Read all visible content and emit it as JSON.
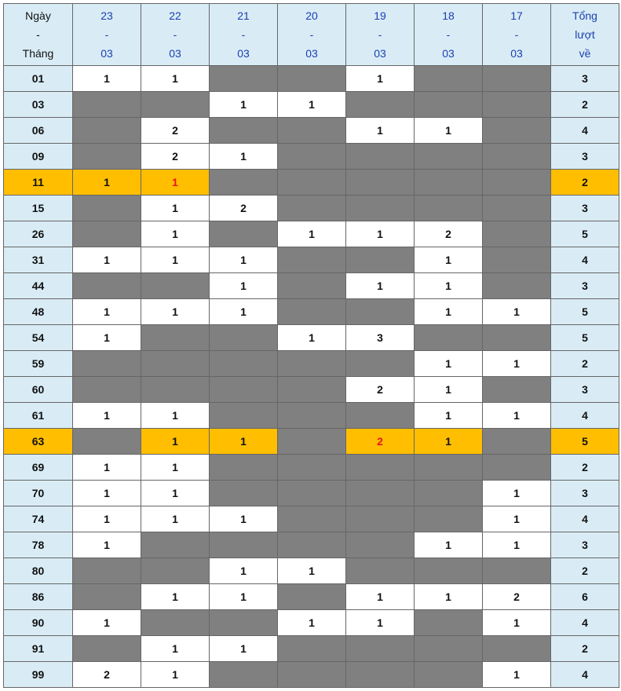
{
  "header": {
    "first": [
      "Ngày",
      "-",
      "Tháng"
    ],
    "dates": [
      [
        "23",
        "-",
        "03"
      ],
      [
        "22",
        "-",
        "03"
      ],
      [
        "21",
        "-",
        "03"
      ],
      [
        "20",
        "-",
        "03"
      ],
      [
        "19",
        "-",
        "03"
      ],
      [
        "18",
        "-",
        "03"
      ],
      [
        "17",
        "-",
        "03"
      ]
    ],
    "total": [
      "Tổng",
      "lượt",
      "về"
    ]
  },
  "colors": {
    "header_bg": "#d9ecf6",
    "empty": "#808080",
    "highlight": "#ffbe00",
    "red": "#e8141c",
    "date_text": "#1a3fb0"
  },
  "rows": [
    {
      "num": "01",
      "cells": [
        "1",
        "1",
        "",
        "",
        "1",
        "",
        ""
      ],
      "total": "3"
    },
    {
      "num": "03",
      "cells": [
        "",
        "",
        "1",
        "1",
        "",
        "",
        ""
      ],
      "total": "2"
    },
    {
      "num": "06",
      "cells": [
        "",
        "2",
        "",
        "",
        "1",
        "1",
        ""
      ],
      "total": "4"
    },
    {
      "num": "09",
      "cells": [
        "",
        "2",
        "1",
        "",
        "",
        "",
        ""
      ],
      "total": "3"
    },
    {
      "num": "11",
      "cells": [
        "1",
        "1",
        "",
        "",
        "",
        "",
        ""
      ],
      "total": "2",
      "highlight": true,
      "red": [
        1
      ]
    },
    {
      "num": "15",
      "cells": [
        "",
        "1",
        "2",
        "",
        "",
        "",
        ""
      ],
      "total": "3"
    },
    {
      "num": "26",
      "cells": [
        "",
        "1",
        "",
        "1",
        "1",
        "2",
        ""
      ],
      "total": "5"
    },
    {
      "num": "31",
      "cells": [
        "1",
        "1",
        "1",
        "",
        "",
        "1",
        ""
      ],
      "total": "4"
    },
    {
      "num": "44",
      "cells": [
        "",
        "",
        "1",
        "",
        "1",
        "1",
        ""
      ],
      "total": "3"
    },
    {
      "num": "48",
      "cells": [
        "1",
        "1",
        "1",
        "",
        "",
        "1",
        "1"
      ],
      "total": "5"
    },
    {
      "num": "54",
      "cells": [
        "1",
        "",
        "",
        "1",
        "3",
        "",
        ""
      ],
      "total": "5"
    },
    {
      "num": "59",
      "cells": [
        "",
        "",
        "",
        "",
        "",
        "1",
        "1"
      ],
      "total": "2"
    },
    {
      "num": "60",
      "cells": [
        "",
        "",
        "",
        "",
        "2",
        "1",
        ""
      ],
      "total": "3"
    },
    {
      "num": "61",
      "cells": [
        "1",
        "1",
        "",
        "",
        "",
        "1",
        "1"
      ],
      "total": "4"
    },
    {
      "num": "63",
      "cells": [
        "",
        "1",
        "1",
        "",
        "2",
        "1",
        ""
      ],
      "total": "5",
      "highlight": true,
      "red": [
        4
      ]
    },
    {
      "num": "69",
      "cells": [
        "1",
        "1",
        "",
        "",
        "",
        "",
        ""
      ],
      "total": "2"
    },
    {
      "num": "70",
      "cells": [
        "1",
        "1",
        "",
        "",
        "",
        "",
        "1"
      ],
      "total": "3"
    },
    {
      "num": "74",
      "cells": [
        "1",
        "1",
        "1",
        "",
        "",
        "",
        "1"
      ],
      "total": "4"
    },
    {
      "num": "78",
      "cells": [
        "1",
        "",
        "",
        "",
        "",
        "1",
        "1"
      ],
      "total": "3"
    },
    {
      "num": "80",
      "cells": [
        "",
        "",
        "1",
        "1",
        "",
        "",
        ""
      ],
      "total": "2"
    },
    {
      "num": "86",
      "cells": [
        "",
        "1",
        "1",
        "",
        "1",
        "1",
        "2"
      ],
      "total": "6"
    },
    {
      "num": "90",
      "cells": [
        "1",
        "",
        "",
        "1",
        "1",
        "",
        "1"
      ],
      "total": "4"
    },
    {
      "num": "91",
      "cells": [
        "",
        "1",
        "1",
        "",
        "",
        "",
        ""
      ],
      "total": "2"
    },
    {
      "num": "99",
      "cells": [
        "2",
        "1",
        "",
        "",
        "",
        "",
        "1"
      ],
      "total": "4"
    }
  ]
}
